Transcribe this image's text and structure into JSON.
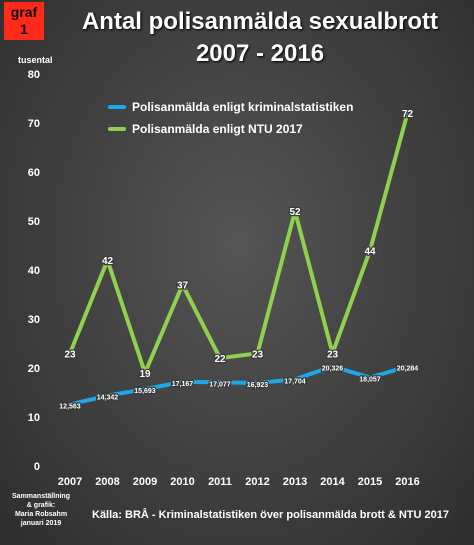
{
  "badge": {
    "line1": "graf",
    "line2": "1"
  },
  "title_line1": "Antal polisanmälda sexualbrott",
  "title_line2": "2007 - 2016",
  "credit": [
    "Sammanställning",
    "& grafik:",
    "Maria Robsahm",
    "januari 2019"
  ],
  "source": "Källa: BRÅ - Kriminalstatistiken över polisanmälda brott & NTU 2017",
  "chart_data": {
    "type": "line",
    "ylabel": "tusental",
    "ylim": [
      0,
      80
    ],
    "yticks": [
      0,
      10,
      20,
      30,
      40,
      50,
      60,
      70,
      80
    ],
    "categories": [
      "2007",
      "2008",
      "2009",
      "2010",
      "2011",
      "2012",
      "2013",
      "2014",
      "2015",
      "2016"
    ],
    "grid": false,
    "legend_position": "top-left",
    "series": [
      {
        "name": "Polisanmälda enligt kriminalstatistiken",
        "color": "#1fa8e8",
        "values": [
          12.563,
          14.342,
          15.693,
          17.167,
          17.077,
          16.923,
          17.704,
          20.326,
          18.057,
          20.284
        ],
        "labels": [
          "12,563",
          "14,342",
          "15,693",
          "17,167",
          "17,077",
          "16,923",
          "17,704",
          "20,326",
          "18,057",
          "20,284"
        ]
      },
      {
        "name": "Polisanmälda enligt NTU 2017",
        "color": "#8fd14f",
        "values": [
          23,
          42,
          19,
          37,
          22,
          23,
          52,
          23,
          44,
          72
        ],
        "labels": [
          "23",
          "42",
          "19",
          "37",
          "22",
          "23",
          "52",
          "23",
          "44",
          "72"
        ]
      }
    ]
  }
}
